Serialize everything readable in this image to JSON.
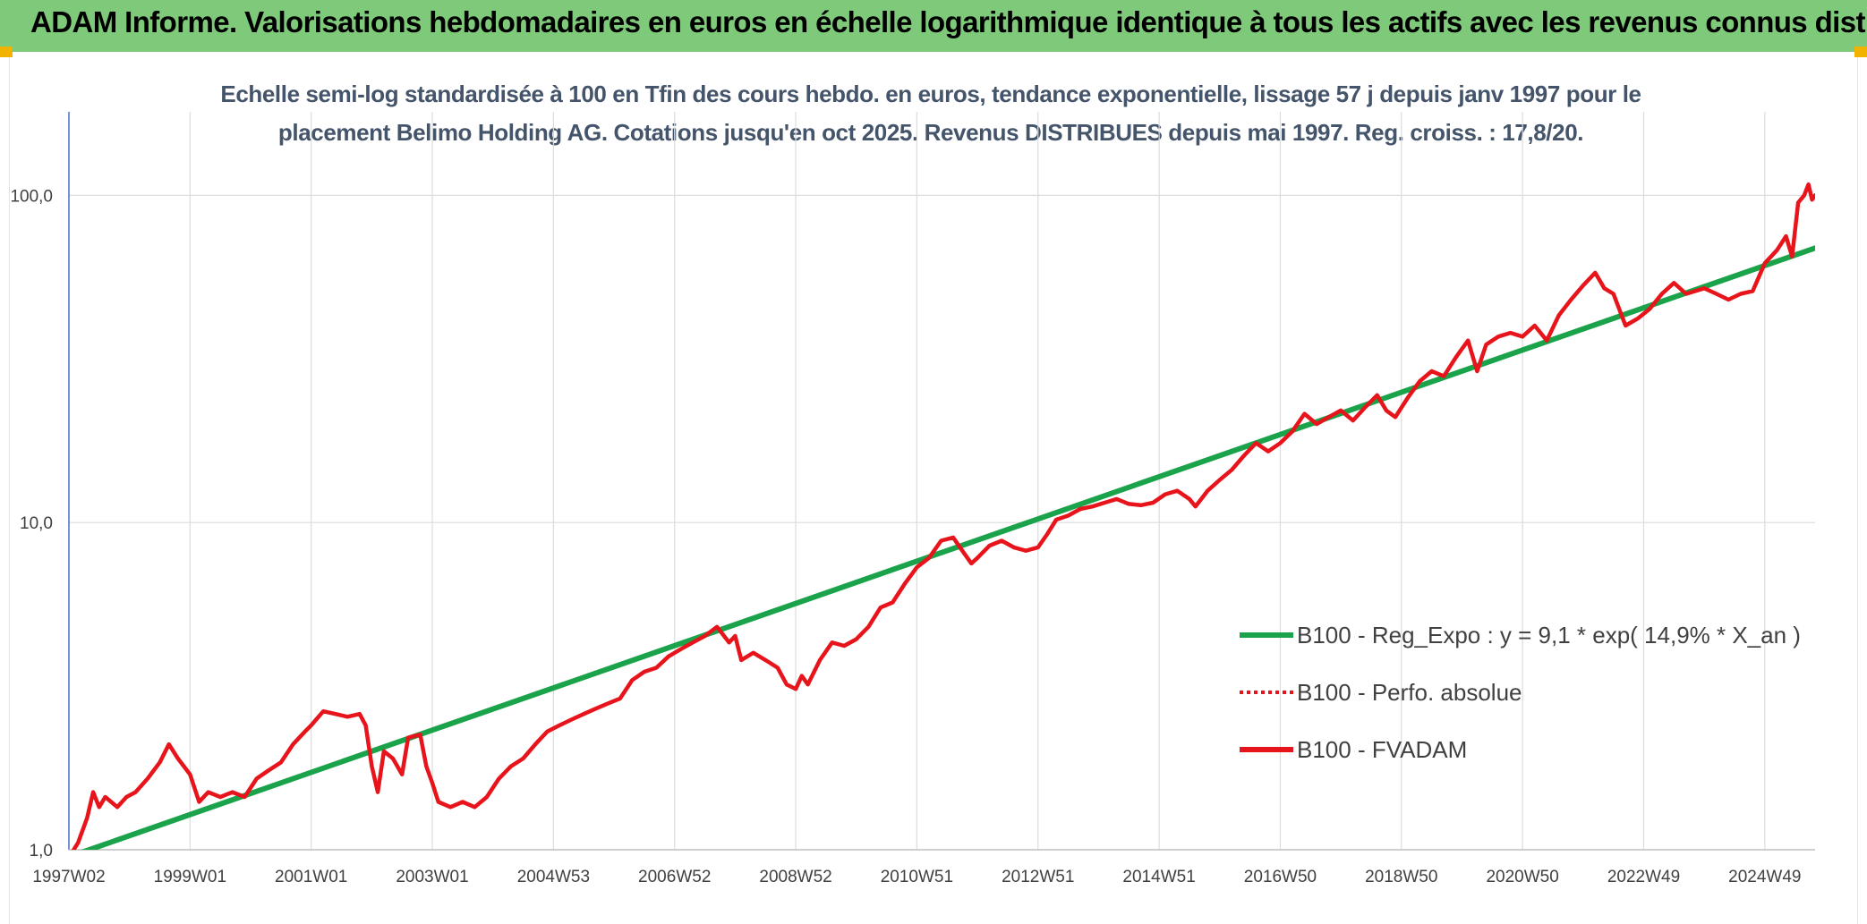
{
  "header": {
    "title": "ADAM Informe. Valorisations hebdomadaires en euros en échelle logarithmique identique à tous les actifs avec les revenus connus distribués"
  },
  "chart_data": {
    "type": "line",
    "title_line1": "Echelle semi-log standardisée à 100 en Tfin des cours hebdo. en euros, tendance exponentielle, lissage 57 j depuis janv 1997 pour le",
    "title_line2": "placement Belimo Holding AG. Cotations jusqu'en oct 2025. Revenus DISTRIBUES depuis mai 1997. Reg. croiss. : 17,8/20.",
    "y_scale": "log",
    "ylim": [
      1,
      180
    ],
    "xlim": [
      1997.0,
      2025.83
    ],
    "y_ticks": [
      {
        "value": 1,
        "label": "1,0"
      },
      {
        "value": 10,
        "label": "10,0"
      },
      {
        "value": 100,
        "label": "100,0"
      }
    ],
    "x_ticks": [
      {
        "value": 1997.0,
        "label": "1997W02"
      },
      {
        "value": 1999.0,
        "label": "1999W01"
      },
      {
        "value": 2001.0,
        "label": "2001W01"
      },
      {
        "value": 2003.0,
        "label": "2003W01"
      },
      {
        "value": 2005.0,
        "label": "2004W53"
      },
      {
        "value": 2007.0,
        "label": "2006W52"
      },
      {
        "value": 2009.0,
        "label": "2008W52"
      },
      {
        "value": 2011.0,
        "label": "2010W51"
      },
      {
        "value": 2013.0,
        "label": "2012W51"
      },
      {
        "value": 2015.0,
        "label": "2014W51"
      },
      {
        "value": 2017.0,
        "label": "2016W50"
      },
      {
        "value": 2019.0,
        "label": "2018W50"
      },
      {
        "value": 2021.0,
        "label": "2020W50"
      },
      {
        "value": 2023.0,
        "label": "2022W49"
      },
      {
        "value": 2025.0,
        "label": "2024W49"
      }
    ],
    "grid": "vertical and horizontal gridlines",
    "legend_position": "right",
    "legend": [
      {
        "label": "B100 - Reg_Expo : y = 9,1 * exp( 14,9% *  X_an )",
        "color": "#1aa34a",
        "style": "solid"
      },
      {
        "label": "B100 - Perfo. absolue",
        "color": "#e8141b",
        "style": "dotted"
      },
      {
        "label": "B100 - FVADAM",
        "color": "#e8141b",
        "style": "solid"
      }
    ],
    "series": [
      {
        "name": "B100 - Reg_Expo : y = 9,1 * exp( 14,9% *  X_an )",
        "color": "#1aa34a",
        "points": [
          [
            1997.2,
            0.98
          ],
          [
            2025.83,
            69
          ]
        ]
      },
      {
        "name": "B100 - FVADAM",
        "color": "#e8141b",
        "points": [
          [
            1997.05,
            0.98
          ],
          [
            1997.15,
            1.05
          ],
          [
            1997.3,
            1.25
          ],
          [
            1997.4,
            1.5
          ],
          [
            1997.5,
            1.35
          ],
          [
            1997.6,
            1.45
          ],
          [
            1997.8,
            1.35
          ],
          [
            1997.95,
            1.45
          ],
          [
            1998.1,
            1.5
          ],
          [
            1998.3,
            1.65
          ],
          [
            1998.5,
            1.85
          ],
          [
            1998.65,
            2.1
          ],
          [
            1998.8,
            1.9
          ],
          [
            1999.0,
            1.7
          ],
          [
            1999.15,
            1.4
          ],
          [
            1999.3,
            1.5
          ],
          [
            1999.5,
            1.45
          ],
          [
            1999.7,
            1.5
          ],
          [
            1999.9,
            1.45
          ],
          [
            2000.1,
            1.65
          ],
          [
            2000.3,
            1.75
          ],
          [
            2000.5,
            1.85
          ],
          [
            2000.7,
            2.1
          ],
          [
            2000.9,
            2.3
          ],
          [
            2001.0,
            2.4
          ],
          [
            2001.2,
            2.65
          ],
          [
            2001.4,
            2.6
          ],
          [
            2001.6,
            2.55
          ],
          [
            2001.8,
            2.6
          ],
          [
            2001.9,
            2.4
          ],
          [
            2002.0,
            1.8
          ],
          [
            2002.1,
            1.5
          ],
          [
            2002.2,
            2.0
          ],
          [
            2002.35,
            1.9
          ],
          [
            2002.5,
            1.7
          ],
          [
            2002.6,
            2.2
          ],
          [
            2002.8,
            2.25
          ],
          [
            2002.9,
            1.8
          ],
          [
            2003.0,
            1.6
          ],
          [
            2003.1,
            1.4
          ],
          [
            2003.3,
            1.35
          ],
          [
            2003.5,
            1.4
          ],
          [
            2003.7,
            1.35
          ],
          [
            2003.9,
            1.45
          ],
          [
            2004.1,
            1.65
          ],
          [
            2004.3,
            1.8
          ],
          [
            2004.5,
            1.9
          ],
          [
            2004.7,
            2.1
          ],
          [
            2004.9,
            2.3
          ],
          [
            2005.1,
            2.4
          ],
          [
            2005.3,
            2.5
          ],
          [
            2005.5,
            2.6
          ],
          [
            2005.7,
            2.7
          ],
          [
            2005.9,
            2.8
          ],
          [
            2006.1,
            2.9
          ],
          [
            2006.3,
            3.3
          ],
          [
            2006.5,
            3.5
          ],
          [
            2006.7,
            3.6
          ],
          [
            2006.9,
            3.9
          ],
          [
            2007.1,
            4.1
          ],
          [
            2007.3,
            4.3
          ],
          [
            2007.5,
            4.5
          ],
          [
            2007.7,
            4.8
          ],
          [
            2007.9,
            4.3
          ],
          [
            2008.0,
            4.5
          ],
          [
            2008.1,
            3.8
          ],
          [
            2008.3,
            4.0
          ],
          [
            2008.5,
            3.8
          ],
          [
            2008.7,
            3.6
          ],
          [
            2008.85,
            3.2
          ],
          [
            2009.0,
            3.1
          ],
          [
            2009.1,
            3.4
          ],
          [
            2009.2,
            3.2
          ],
          [
            2009.4,
            3.8
          ],
          [
            2009.6,
            4.3
          ],
          [
            2009.8,
            4.2
          ],
          [
            2010.0,
            4.4
          ],
          [
            2010.2,
            4.8
          ],
          [
            2010.4,
            5.5
          ],
          [
            2010.6,
            5.7
          ],
          [
            2010.8,
            6.5
          ],
          [
            2011.0,
            7.3
          ],
          [
            2011.2,
            7.8
          ],
          [
            2011.4,
            8.8
          ],
          [
            2011.6,
            9.0
          ],
          [
            2011.75,
            8.2
          ],
          [
            2011.9,
            7.5
          ],
          [
            2012.0,
            7.8
          ],
          [
            2012.2,
            8.5
          ],
          [
            2012.4,
            8.8
          ],
          [
            2012.6,
            8.4
          ],
          [
            2012.8,
            8.2
          ],
          [
            2013.0,
            8.4
          ],
          [
            2013.15,
            9.2
          ],
          [
            2013.3,
            10.2
          ],
          [
            2013.5,
            10.5
          ],
          [
            2013.7,
            11.0
          ],
          [
            2013.9,
            11.2
          ],
          [
            2014.1,
            11.5
          ],
          [
            2014.3,
            11.8
          ],
          [
            2014.5,
            11.4
          ],
          [
            2014.7,
            11.3
          ],
          [
            2014.9,
            11.5
          ],
          [
            2015.1,
            12.2
          ],
          [
            2015.3,
            12.5
          ],
          [
            2015.5,
            11.8
          ],
          [
            2015.6,
            11.2
          ],
          [
            2015.8,
            12.5
          ],
          [
            2016.0,
            13.5
          ],
          [
            2016.2,
            14.5
          ],
          [
            2016.4,
            16.0
          ],
          [
            2016.6,
            17.5
          ],
          [
            2016.8,
            16.5
          ],
          [
            2017.0,
            17.5
          ],
          [
            2017.2,
            19.0
          ],
          [
            2017.4,
            21.5
          ],
          [
            2017.6,
            20.0
          ],
          [
            2017.8,
            21.0
          ],
          [
            2018.0,
            22.0
          ],
          [
            2018.2,
            20.5
          ],
          [
            2018.4,
            22.5
          ],
          [
            2018.6,
            24.5
          ],
          [
            2018.75,
            22.0
          ],
          [
            2018.9,
            21.0
          ],
          [
            2019.1,
            24.0
          ],
          [
            2019.3,
            27.0
          ],
          [
            2019.5,
            29.0
          ],
          [
            2019.7,
            28.0
          ],
          [
            2019.9,
            32.0
          ],
          [
            2020.1,
            36.0
          ],
          [
            2020.25,
            29.0
          ],
          [
            2020.4,
            35.0
          ],
          [
            2020.6,
            37.0
          ],
          [
            2020.8,
            38.0
          ],
          [
            2021.0,
            37.0
          ],
          [
            2021.2,
            40.0
          ],
          [
            2021.4,
            36.0
          ],
          [
            2021.6,
            43.0
          ],
          [
            2021.8,
            48.0
          ],
          [
            2022.0,
            53.0
          ],
          [
            2022.2,
            58.0
          ],
          [
            2022.35,
            52.0
          ],
          [
            2022.5,
            50.0
          ],
          [
            2022.7,
            40.0
          ],
          [
            2022.9,
            42.0
          ],
          [
            2023.1,
            45.0
          ],
          [
            2023.3,
            50.0
          ],
          [
            2023.5,
            54.0
          ],
          [
            2023.7,
            50.0
          ],
          [
            2024.0,
            52.0
          ],
          [
            2024.2,
            50.0
          ],
          [
            2024.4,
            48.0
          ],
          [
            2024.6,
            50.0
          ],
          [
            2024.8,
            51.0
          ],
          [
            2025.0,
            62.0
          ],
          [
            2025.2,
            68.0
          ],
          [
            2025.35,
            75.0
          ],
          [
            2025.45,
            65.0
          ],
          [
            2025.55,
            95.0
          ],
          [
            2025.65,
            100.0
          ],
          [
            2025.72,
            108.0
          ],
          [
            2025.78,
            97.0
          ],
          [
            2025.83,
            100.0
          ]
        ]
      }
    ]
  }
}
